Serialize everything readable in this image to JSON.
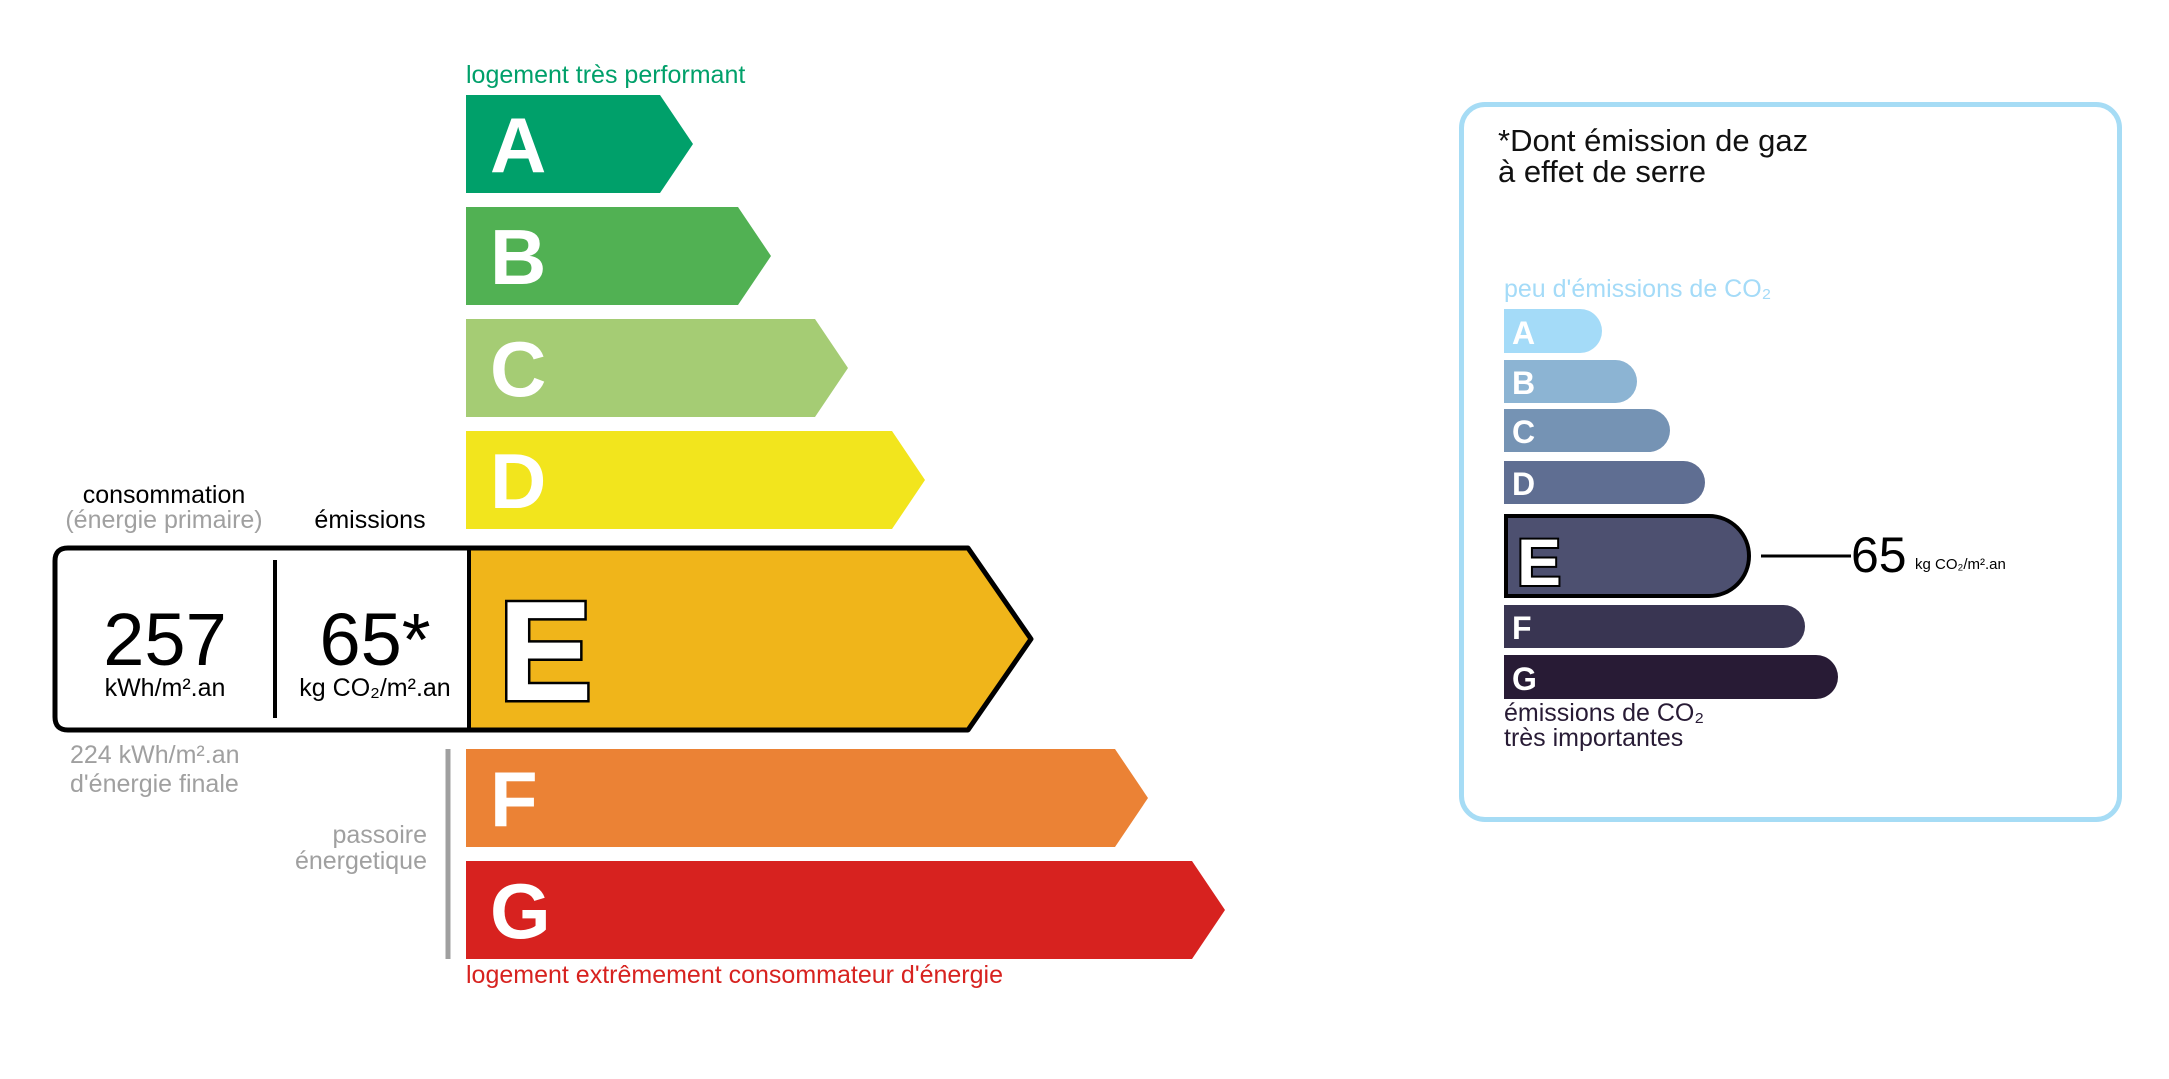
{
  "energy": {
    "top_label": "logement très performant",
    "bottom_label": "logement extrêmement consommateur d'énergie",
    "classes": [
      {
        "letter": "A",
        "color": "#00a06a"
      },
      {
        "letter": "B",
        "color": "#51b153"
      },
      {
        "letter": "C",
        "color": "#a5cc74"
      },
      {
        "letter": "D",
        "color": "#f2e51d"
      },
      {
        "letter": "E",
        "color": "#f0b51a"
      },
      {
        "letter": "F",
        "color": "#eb8235"
      },
      {
        "letter": "G",
        "color": "#d7221f"
      }
    ],
    "current_class": "E",
    "consumption_label": "consommation",
    "consumption_sub": "(énergie primaire)",
    "emissions_label": "émissions",
    "consumption_value": "257",
    "consumption_unit": "kWh/m².an",
    "emissions_value": "65*",
    "emissions_unit": "kg CO₂/m².an",
    "final_energy_line1": "224 kWh/m².an",
    "final_energy_line2": "d'énergie finale",
    "passoire_line1": "passoire",
    "passoire_line2": "énergetique",
    "top_color": "#00a06a",
    "bottom_color": "#d7221f"
  },
  "ges": {
    "title_line1": "*Dont émission de gaz",
    "title_line2": "à effet de serre",
    "top_label": "peu d'émissions de CO₂",
    "bottom_line1": "émissions de CO₂",
    "bottom_line2": "très importantes",
    "classes": [
      {
        "letter": "A",
        "color": "#a4dbf8"
      },
      {
        "letter": "B",
        "color": "#8cb4d3"
      },
      {
        "letter": "C",
        "color": "#7593b4"
      },
      {
        "letter": "D",
        "color": "#5f6e92"
      },
      {
        "letter": "E",
        "color": "#4d5070"
      },
      {
        "letter": "F",
        "color": "#393552"
      },
      {
        "letter": "G",
        "color": "#281b35"
      }
    ],
    "current_class": "E",
    "value": "65",
    "unit": "kg CO₂/m².an",
    "border_color": "#a6dcf5"
  }
}
